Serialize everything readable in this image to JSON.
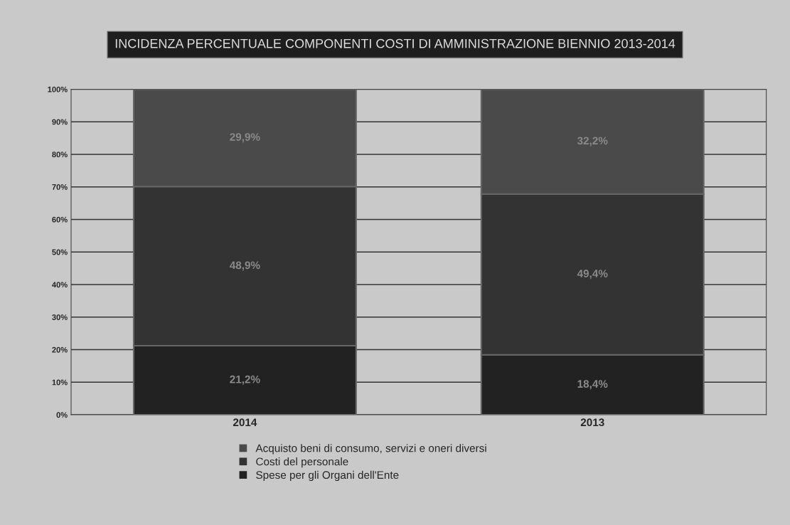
{
  "chart_data": {
    "type": "bar",
    "title": "INCIDENZA PERCENTUALE COMPONENTI COSTI DI AMMINISTRAZIONE BIENNIO 2013-2014",
    "categories": [
      "2014",
      "2013"
    ],
    "stacked": true,
    "series": [
      {
        "name": "Spese per gli Organi dell'Ente",
        "color": "#222222",
        "values": [
          21.2,
          18.4
        ],
        "value_labels": [
          "21,2%",
          "18,4%"
        ]
      },
      {
        "name": "Costi del personale",
        "color": "#333333",
        "values": [
          48.9,
          49.4
        ],
        "value_labels": [
          "48,9%",
          "49,4%"
        ]
      },
      {
        "name": "Acquisto beni di consumo, servizi e oneri diversi",
        "color": "#4a4a4a",
        "values": [
          29.9,
          32.2
        ],
        "value_labels": [
          "29,9%",
          "32,2%"
        ]
      }
    ],
    "ylim": [
      0,
      100
    ],
    "yticks": [
      {
        "value": 0,
        "label": "0%"
      },
      {
        "value": 10,
        "label": "10%"
      },
      {
        "value": 20,
        "label": "20%"
      },
      {
        "value": 30,
        "label": "30%"
      },
      {
        "value": 40,
        "label": "40%"
      },
      {
        "value": 50,
        "label": "50%"
      },
      {
        "value": 60,
        "label": "60%"
      },
      {
        "value": 70,
        "label": "70%"
      },
      {
        "value": 80,
        "label": "80%"
      },
      {
        "value": 90,
        "label": "90%"
      },
      {
        "value": 100,
        "label": "100%"
      }
    ],
    "grid": "y",
    "legend": "bottom"
  }
}
